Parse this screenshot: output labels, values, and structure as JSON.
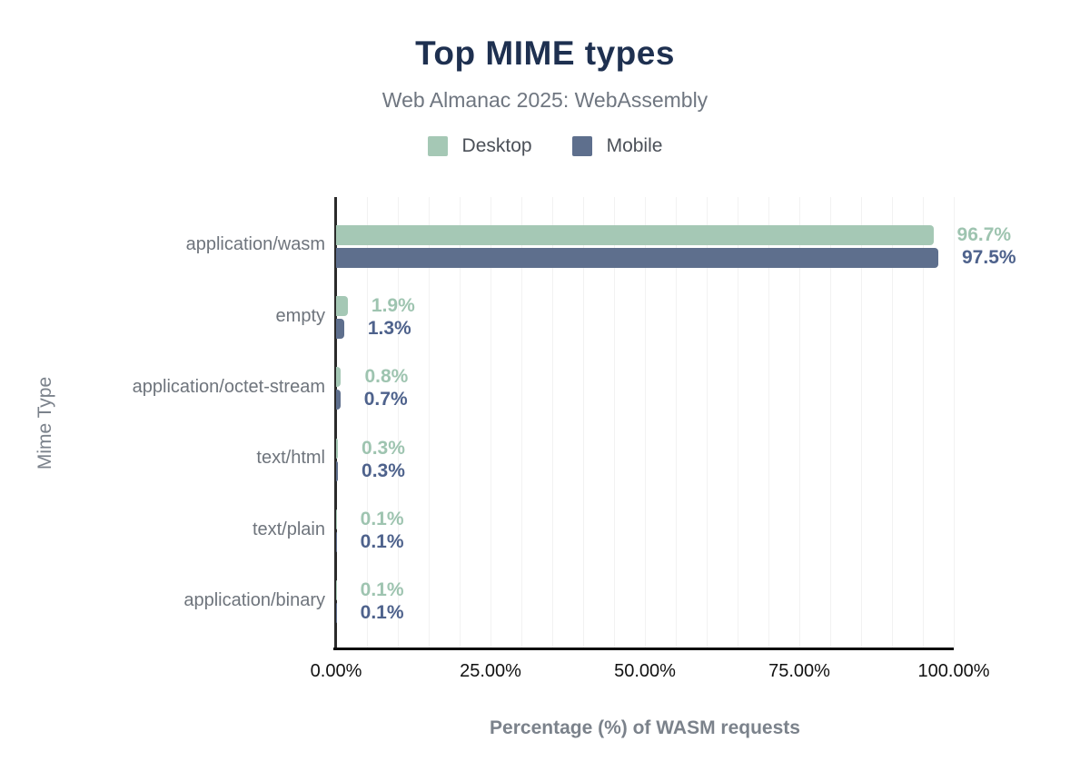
{
  "header": {
    "title": "Top MIME types",
    "subtitle": "Web Almanac 2025: WebAssembly"
  },
  "legend": [
    {
      "name": "Desktop",
      "color": "#a5c8b5"
    },
    {
      "name": "Mobile",
      "color": "#5e6f8d"
    }
  ],
  "axes": {
    "x_title": "Percentage (%) of WASM requests",
    "y_title": "Mime Type",
    "x_ticks": [
      "0.00%",
      "25.00%",
      "50.00%",
      "75.00%",
      "100.00%"
    ]
  },
  "chart_data": {
    "type": "bar",
    "orientation": "horizontal",
    "title": "Top MIME types",
    "subtitle": "Web Almanac 2025: WebAssembly",
    "xlabel": "Percentage (%) of WASM requests",
    "ylabel": "Mime Type",
    "xlim": [
      0,
      100
    ],
    "x_tick_values": [
      0,
      25,
      50,
      75,
      100
    ],
    "x_tick_labels": [
      "0.00%",
      "25.00%",
      "50.00%",
      "75.00%",
      "100.00%"
    ],
    "grid": true,
    "grid_interval_percent": 5,
    "legend_position": "top",
    "categories": [
      "application/wasm",
      "empty",
      "application/octet-stream",
      "text/html",
      "text/plain",
      "application/binary"
    ],
    "series": [
      {
        "name": "Desktop",
        "color": "#a5c8b5",
        "label_color": "#9ec4b0",
        "values": [
          96.7,
          1.9,
          0.8,
          0.3,
          0.1,
          0.1
        ],
        "value_labels": [
          "96.7%",
          "1.9%",
          "0.8%",
          "0.3%",
          "0.1%",
          "0.1%"
        ]
      },
      {
        "name": "Mobile",
        "color": "#5e6f8d",
        "label_color": "#4e628c",
        "values": [
          97.5,
          1.3,
          0.7,
          0.3,
          0.1,
          0.1
        ],
        "value_labels": [
          "97.5%",
          "1.3%",
          "0.7%",
          "0.3%",
          "0.1%",
          "0.1%"
        ]
      }
    ]
  },
  "colors": {
    "title": "#1e3050",
    "subtitle": "#6f7680",
    "axis_text": "#111111",
    "axis_title": "#7b828b",
    "category_label": "#6e747c",
    "gridline": "#f2f2f2"
  }
}
